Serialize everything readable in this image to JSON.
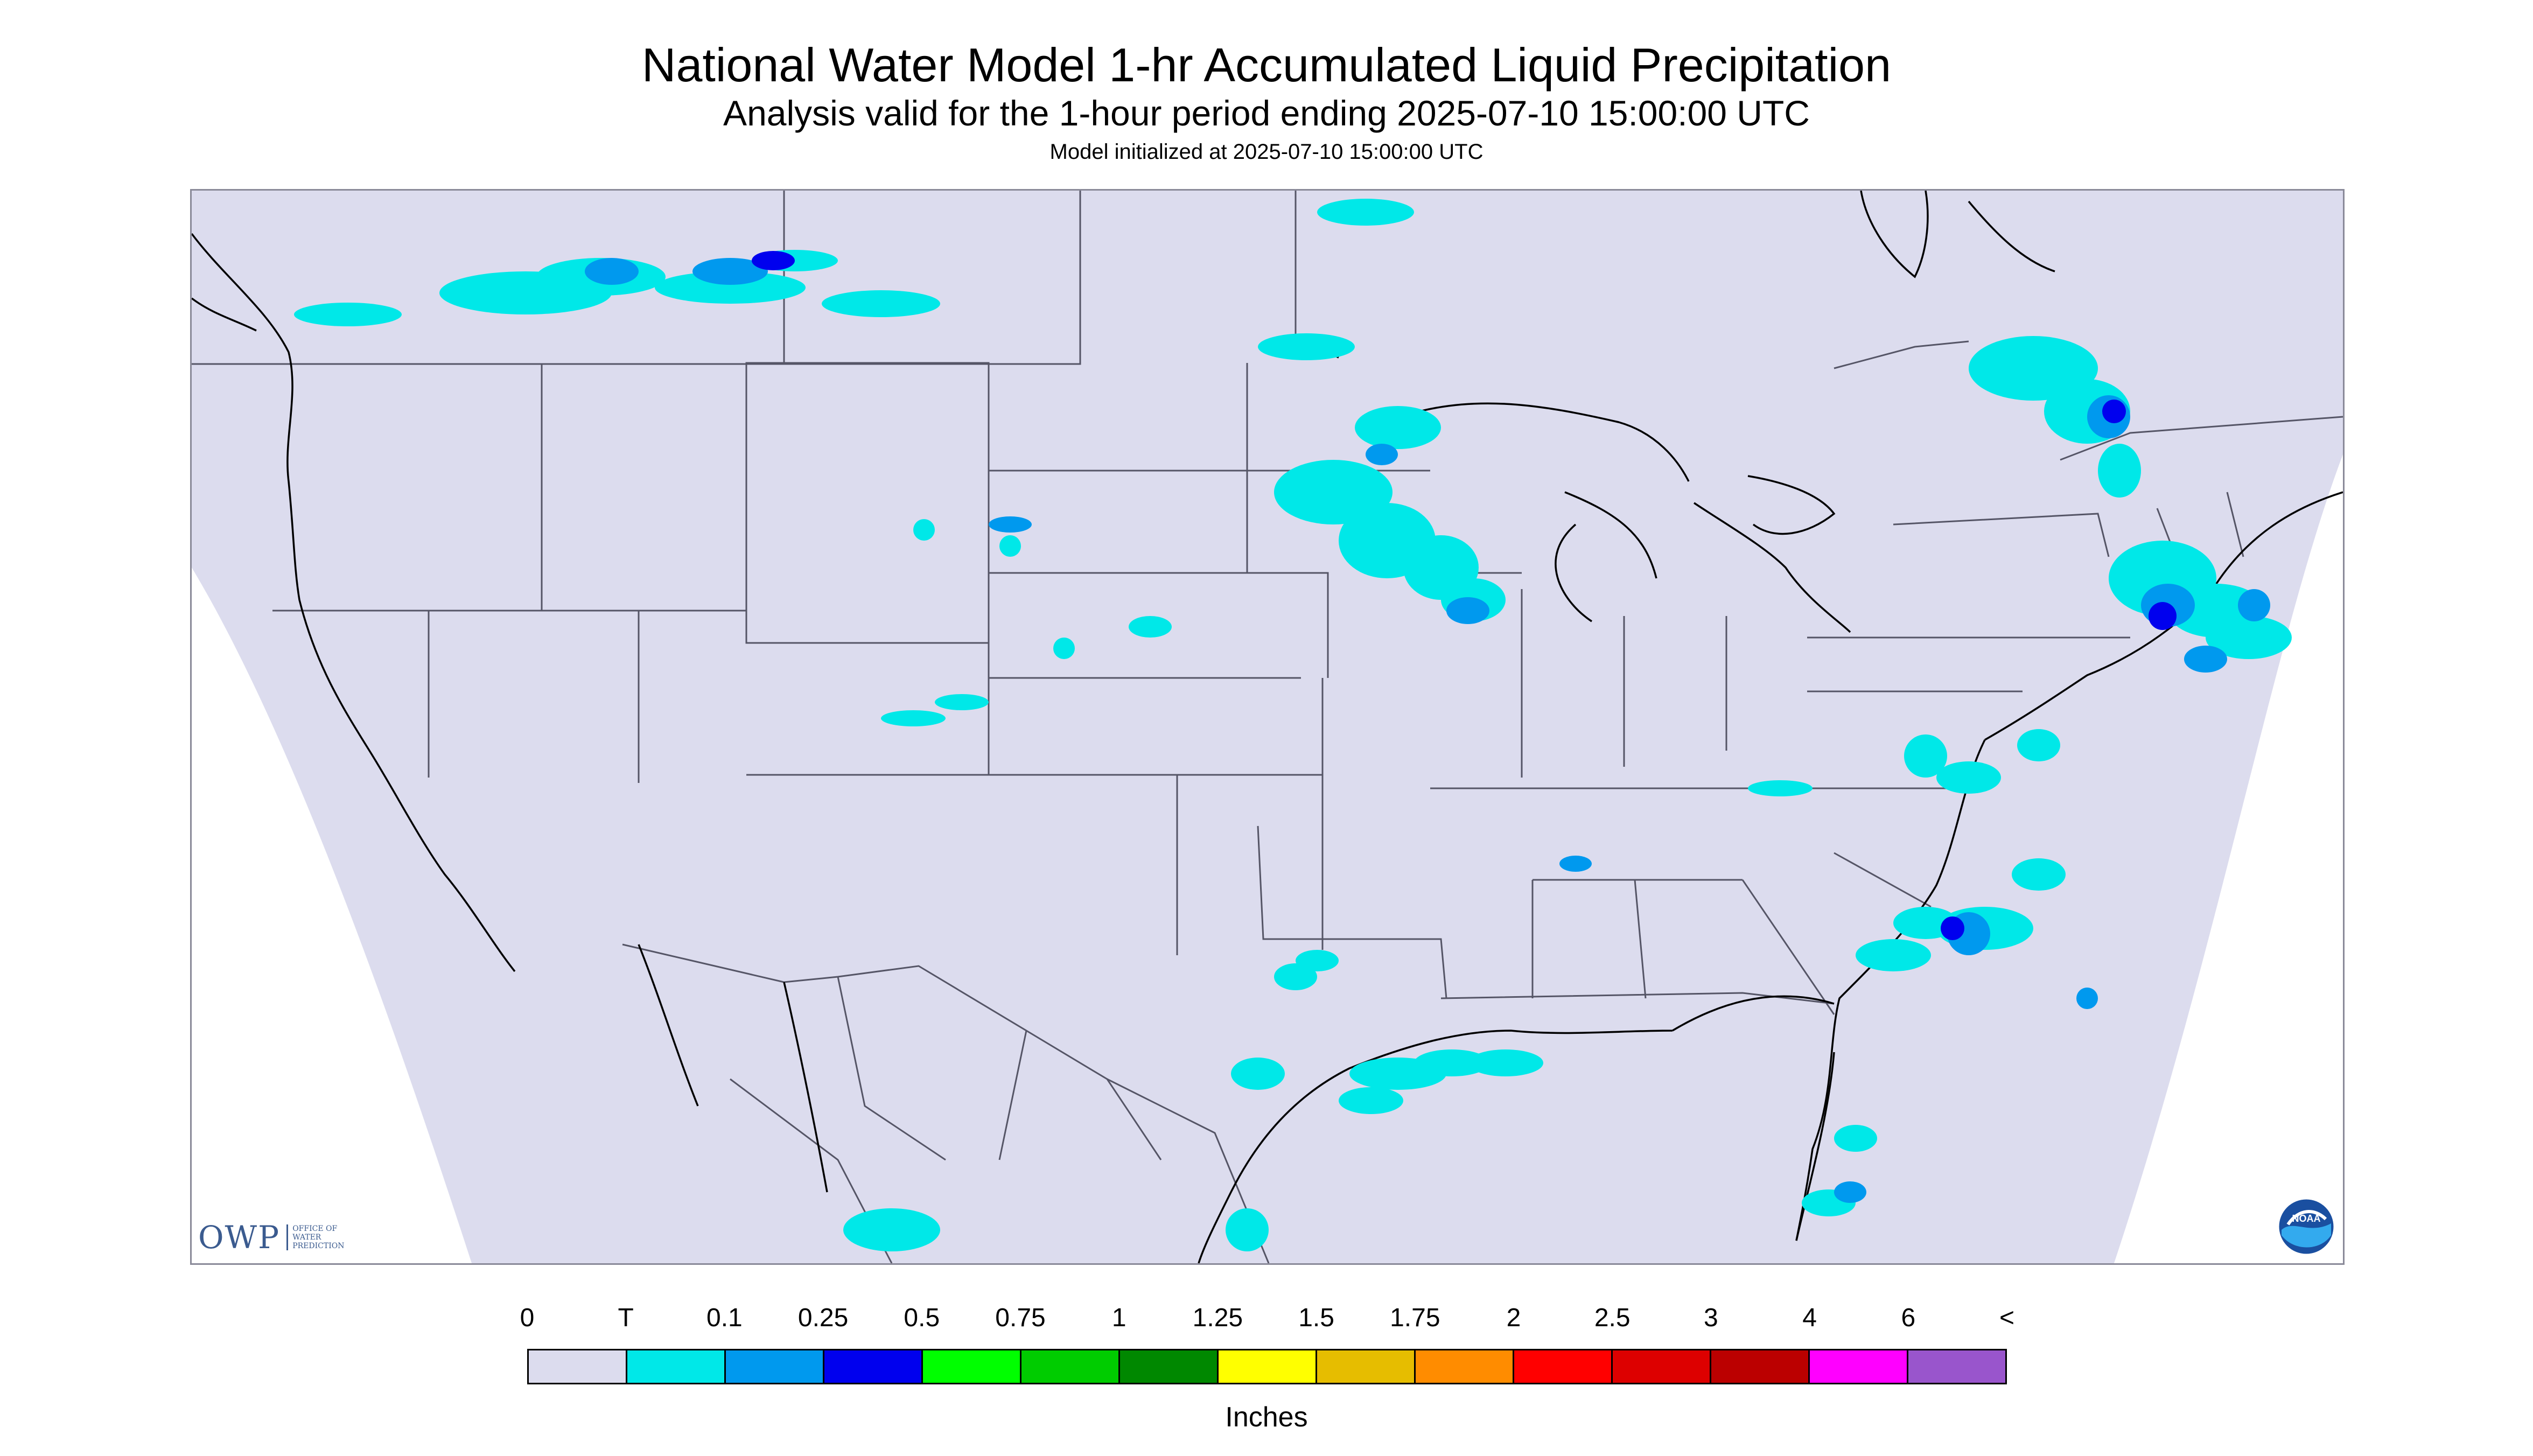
{
  "title": "National Water Model 1-hr Accumulated Liquid Precipitation",
  "subtitle": "Analysis valid for the 1-hour period ending 2025-07-10 15:00:00 UTC",
  "init_line": "Model initialized at 2025-07-10 15:00:00 UTC",
  "logos": {
    "owp_letters": "OWP",
    "owp_name_lines": [
      "OFFICE OF",
      "WATER",
      "PREDICTION"
    ],
    "noaa_text": "NOAA"
  },
  "legend": {
    "units": "Inches",
    "labels": [
      "0",
      "T",
      "0.1",
      "0.25",
      "0.5",
      "0.75",
      "1",
      "1.25",
      "1.5",
      "1.75",
      "2",
      "2.5",
      "3",
      "4",
      "6",
      "<"
    ],
    "colors": [
      "#dcdcee",
      "#00e8e8",
      "#0099ee",
      "#0000ee",
      "#00ff00",
      "#00cc00",
      "#008800",
      "#ffff00",
      "#e6bd00",
      "#ff8c00",
      "#ff0000",
      "#dd0000",
      "#bb0000",
      "#ff00ff",
      "#9955cc"
    ]
  },
  "colors": {
    "domain_fill": "#dcdcee",
    "outside_fill": "#ffffff",
    "boundary_line": "#555566",
    "coast_line": "#000000",
    "trace": "#00e8e8",
    "light": "#0099ee",
    "moderate": "#0000ee"
  }
}
